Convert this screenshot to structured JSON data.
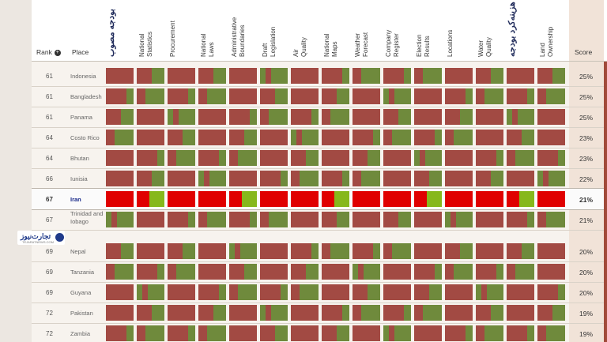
{
  "colors": {
    "closed": "#a24a43",
    "partial": "#6f8a3c",
    "open": "#889a3a",
    "iran_closed": "#e00000",
    "iran_open": "#86b81c"
  },
  "header": {
    "rank_label": "Rank",
    "place_label": "Place",
    "score_label": "Score",
    "sort_icon": "plus-circle-icon",
    "columns": [
      {
        "lines": [
          "بودجه مصوب"
        ],
        "farsi": true
      },
      {
        "lines": [
          "National",
          "Statistics"
        ]
      },
      {
        "lines": [
          "Procurement"
        ]
      },
      {
        "lines": [
          "National",
          "Laws"
        ]
      },
      {
        "lines": [
          "Administrative",
          "Boundaries"
        ]
      },
      {
        "lines": [
          "Draft",
          "Legislation"
        ]
      },
      {
        "lines": [
          "Air",
          "Quality"
        ]
      },
      {
        "lines": [
          "National",
          "Maps"
        ]
      },
      {
        "lines": [
          "Weather",
          "Forecast"
        ]
      },
      {
        "lines": [
          "Company",
          "Register"
        ]
      },
      {
        "lines": [
          "Election",
          "Results"
        ]
      },
      {
        "lines": [
          "Locations"
        ]
      },
      {
        "lines": [
          "Water",
          "Quality"
        ]
      },
      {
        "lines": [
          "هزینه‌کرد بودجه"
        ],
        "farsi": true
      },
      {
        "lines": [
          "Land",
          "Ownership"
        ]
      }
    ]
  },
  "rows": [
    {
      "rank": "61",
      "place": "Indonesia",
      "score": "25%"
    },
    {
      "rank": "61",
      "place": "Bangladesh",
      "score": "25%"
    },
    {
      "rank": "61",
      "place": "Panama",
      "score": "25%"
    },
    {
      "rank": "64",
      "place": "Costo Rico",
      "score": "23%"
    },
    {
      "rank": "64",
      "place": "Bhutan",
      "score": "23%"
    },
    {
      "rank": "66",
      "place": "Iunisia",
      "score": "22%"
    },
    {
      "rank": "67",
      "place": "Iran",
      "score": "21%",
      "highlight": true
    },
    {
      "rank": "67",
      "place": "Trinidad and Iobago",
      "score": "21%",
      "two_line": true
    },
    {
      "rank": "69",
      "place": "Nepal",
      "score": "20%"
    },
    {
      "rank": "69",
      "place": "Tanzania",
      "score": "20%"
    },
    {
      "rank": "69",
      "place": "Guyana",
      "score": "20%"
    },
    {
      "rank": "72",
      "place": "Pakistan",
      "score": "19%"
    },
    {
      "rank": "72",
      "place": "Zambia",
      "score": "19%"
    }
  ],
  "watermark": {
    "text": "تجارت‌نیوز",
    "sub": "TEJARATNEWS.COM",
    "icon": "logo-icon"
  }
}
